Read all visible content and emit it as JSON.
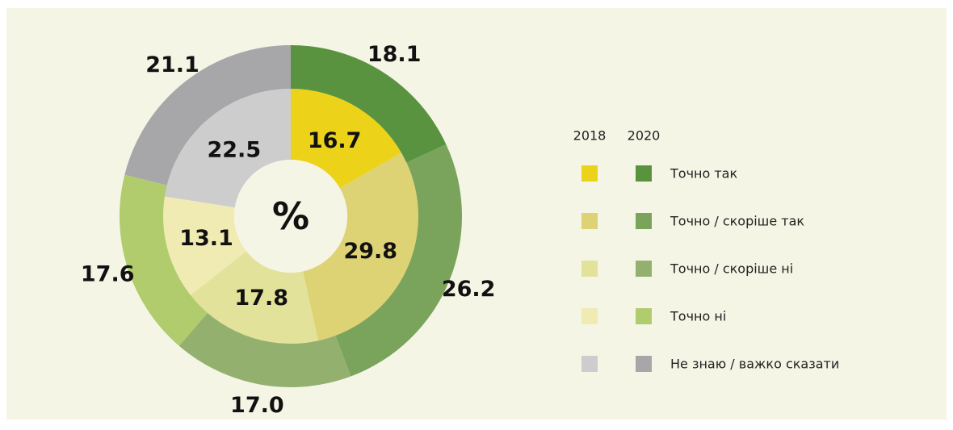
{
  "chart_data": {
    "type": "donut",
    "center_label": "%",
    "categories": [
      "Точно так",
      "Точно / скоріше так",
      "Точно / скоріше ні",
      "Точно ні",
      "Не знаю / важко сказати"
    ],
    "series": [
      {
        "name": "2018",
        "values": [
          16.7,
          29.8,
          17.8,
          13.1,
          22.5
        ],
        "colors": [
          "#ecd31a",
          "#ddd274",
          "#e3e29a",
          "#f0ebb3",
          "#cccdcc"
        ]
      },
      {
        "name": "2020",
        "values": [
          18.1,
          26.2,
          17.0,
          17.6,
          21.1
        ],
        "value_labels": [
          "18.1",
          "26.2",
          "17.0",
          "17.6",
          "21.1"
        ],
        "colors": [
          "#5a9340",
          "#7aa35c",
          "#93b06e",
          "#b0cc6c",
          "#a7a7aa"
        ]
      }
    ],
    "legend": "right"
  }
}
